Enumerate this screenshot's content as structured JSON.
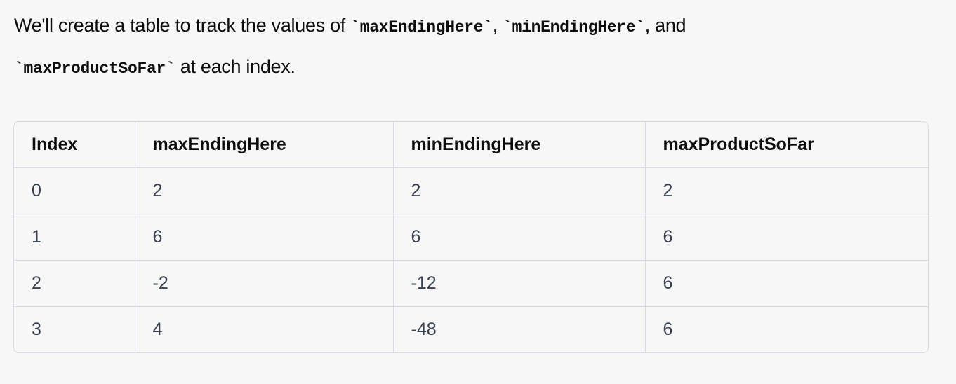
{
  "paragraph": {
    "parts": [
      "We'll create a table to track the values of ",
      "`maxEndingHere`",
      ", ",
      "`minEndingHere`",
      ", and ",
      "`maxProductSoFar`",
      " at each index."
    ]
  },
  "table": {
    "header": [
      "Index",
      "maxEndingHere",
      "minEndingHere",
      "maxProductSoFar"
    ],
    "rows": [
      [
        "0",
        "2",
        "2",
        "2"
      ],
      [
        "1",
        "6",
        "6",
        "6"
      ],
      [
        "2",
        "-2",
        "-12",
        "6"
      ],
      [
        "3",
        "4",
        "-48",
        "6"
      ]
    ]
  }
}
